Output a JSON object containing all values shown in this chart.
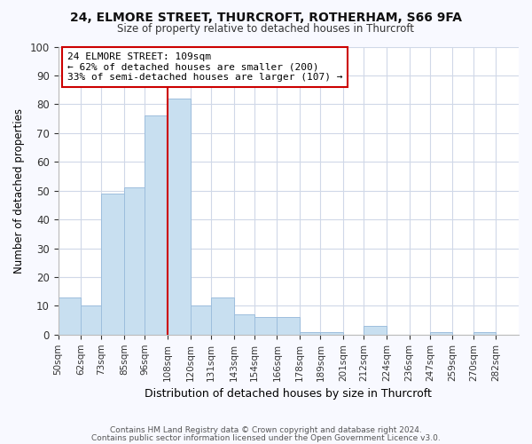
{
  "title": "24, ELMORE STREET, THURCROFT, ROTHERHAM, S66 9FA",
  "subtitle": "Size of property relative to detached houses in Thurcroft",
  "xlabel": "Distribution of detached houses by size in Thurcroft",
  "ylabel": "Number of detached properties",
  "footer_line1": "Contains HM Land Registry data © Crown copyright and database right 2024.",
  "footer_line2": "Contains public sector information licensed under the Open Government Licence v3.0.",
  "bin_labels": [
    "50sqm",
    "62sqm",
    "73sqm",
    "85sqm",
    "96sqm",
    "108sqm",
    "120sqm",
    "131sqm",
    "143sqm",
    "154sqm",
    "166sqm",
    "178sqm",
    "189sqm",
    "201sqm",
    "212sqm",
    "224sqm",
    "236sqm",
    "247sqm",
    "259sqm",
    "270sqm",
    "282sqm"
  ],
  "bar_values": [
    13,
    10,
    49,
    51,
    76,
    82,
    10,
    13,
    7,
    6,
    6,
    1,
    1,
    0,
    3,
    0,
    0,
    1,
    0,
    1
  ],
  "bin_edges": [
    50,
    62,
    73,
    85,
    96,
    108,
    120,
    131,
    143,
    154,
    166,
    178,
    189,
    201,
    212,
    224,
    236,
    247,
    259,
    270,
    282
  ],
  "bar_color": "#c8dff0",
  "bar_edge_color": "#9dbedd",
  "vline_x": 108,
  "vline_color": "#cc0000",
  "annotation_line1": "24 ELMORE STREET: 109sqm",
  "annotation_line2": "← 62% of detached houses are smaller (200)",
  "annotation_line3": "33% of semi-detached houses are larger (107) →",
  "annotation_box_color": "#cc0000",
  "ylim": [
    0,
    100
  ],
  "yticks": [
    0,
    10,
    20,
    30,
    40,
    50,
    60,
    70,
    80,
    90,
    100
  ],
  "grid_color": "#d0d8e8",
  "background_color": "#f8f9ff",
  "plot_bg_color": "#ffffff"
}
